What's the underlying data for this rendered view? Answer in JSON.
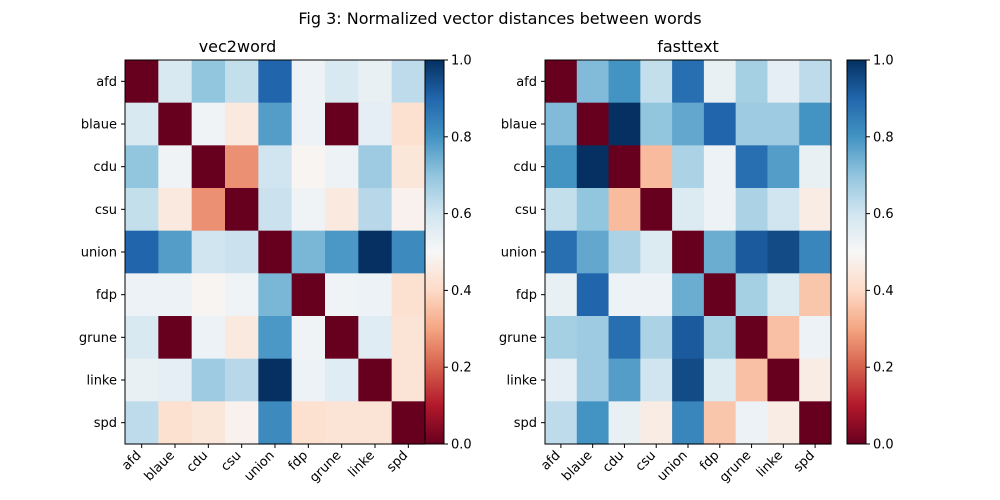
{
  "figure_title": "Fig 3: Normalized vector distances between words",
  "colormap": {
    "name": "RdBu",
    "stops": [
      "#67001f",
      "#b2182b",
      "#d6604d",
      "#f4a582",
      "#fddbc7",
      "#f7f7f7",
      "#d1e5f0",
      "#92c5de",
      "#4393c3",
      "#2166ac",
      "#053061"
    ],
    "range": [
      0,
      1
    ],
    "ticks": [
      "0.0",
      "0.2",
      "0.4",
      "0.6",
      "0.8",
      "1.0"
    ]
  },
  "chart_data": [
    {
      "type": "heatmap",
      "title": "vec2word",
      "x_labels": [
        "afd",
        "blaue",
        "cdu",
        "csu",
        "union",
        "fdp",
        "grune",
        "linke",
        "spd"
      ],
      "y_labels": [
        "afd",
        "blaue",
        "cdu",
        "csu",
        "union",
        "fdp",
        "grune",
        "linke",
        "spd"
      ],
      "values": [
        [
          0.0,
          0.58,
          0.7,
          0.62,
          0.9,
          0.53,
          0.58,
          0.54,
          0.63
        ],
        [
          0.58,
          0.0,
          0.52,
          0.45,
          0.78,
          0.53,
          0.0,
          0.55,
          0.42
        ],
        [
          0.7,
          0.52,
          0.0,
          0.27,
          0.6,
          0.49,
          0.53,
          0.68,
          0.44
        ],
        [
          0.62,
          0.45,
          0.27,
          0.0,
          0.61,
          0.52,
          0.45,
          0.64,
          0.48
        ],
        [
          0.9,
          0.78,
          0.6,
          0.61,
          0.0,
          0.73,
          0.79,
          1.0,
          0.82
        ],
        [
          0.53,
          0.53,
          0.49,
          0.52,
          0.73,
          0.0,
          0.52,
          0.53,
          0.42
        ],
        [
          0.58,
          0.0,
          0.53,
          0.45,
          0.79,
          0.52,
          0.0,
          0.56,
          0.43
        ],
        [
          0.54,
          0.55,
          0.68,
          0.64,
          1.0,
          0.53,
          0.56,
          0.0,
          0.43
        ],
        [
          0.63,
          0.42,
          0.44,
          0.48,
          0.82,
          0.42,
          0.43,
          0.43,
          0.0
        ]
      ],
      "vmin": 0,
      "vmax": 1
    },
    {
      "type": "heatmap",
      "title": "fasttext",
      "x_labels": [
        "afd",
        "blaue",
        "cdu",
        "csu",
        "union",
        "fdp",
        "grune",
        "linke",
        "spd"
      ],
      "y_labels": [
        "afd",
        "blaue",
        "cdu",
        "csu",
        "union",
        "fdp",
        "grune",
        "linke",
        "spd"
      ],
      "values": [
        [
          0.0,
          0.72,
          0.8,
          0.62,
          0.88,
          0.54,
          0.67,
          0.55,
          0.63
        ],
        [
          0.72,
          0.0,
          1.0,
          0.7,
          0.76,
          0.9,
          0.68,
          0.68,
          0.8
        ],
        [
          0.8,
          1.0,
          0.0,
          0.34,
          0.66,
          0.53,
          0.88,
          0.78,
          0.54
        ],
        [
          0.62,
          0.7,
          0.34,
          0.0,
          0.57,
          0.53,
          0.66,
          0.6,
          0.46
        ],
        [
          0.88,
          0.76,
          0.66,
          0.57,
          0.0,
          0.75,
          0.92,
          0.95,
          0.83
        ],
        [
          0.54,
          0.9,
          0.53,
          0.53,
          0.75,
          0.0,
          0.67,
          0.57,
          0.36
        ],
        [
          0.67,
          0.68,
          0.88,
          0.66,
          0.92,
          0.67,
          0.0,
          0.35,
          0.53
        ],
        [
          0.55,
          0.68,
          0.78,
          0.6,
          0.95,
          0.57,
          0.35,
          0.0,
          0.46
        ],
        [
          0.63,
          0.8,
          0.54,
          0.46,
          0.83,
          0.36,
          0.53,
          0.46,
          0.0
        ]
      ],
      "vmin": 0,
      "vmax": 1
    }
  ]
}
